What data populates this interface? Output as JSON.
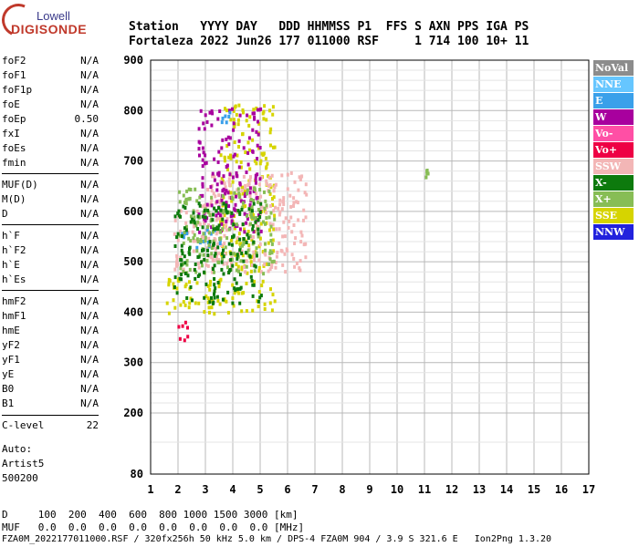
{
  "logo": {
    "top": "Lowell",
    "main": "DIGISONDE"
  },
  "header": {
    "line1": "Station   YYYY DAY   DDD HHMMSS P1  FFS S AXN PPS IGA PS",
    "line2": "Fortaleza 2022 Jun26 177 011000 RSF     1 714 100 10+ 11"
  },
  "params_group1": [
    {
      "name": "foF2",
      "value": "N/A"
    },
    {
      "name": "foF1",
      "value": "N/A"
    },
    {
      "name": "foF1p",
      "value": "N/A"
    },
    {
      "name": "foE",
      "value": "N/A"
    },
    {
      "name": "foEp",
      "value": "0.50"
    },
    {
      "name": "fxI",
      "value": "N/A"
    },
    {
      "name": "foEs",
      "value": "N/A"
    },
    {
      "name": "fmin",
      "value": "N/A"
    }
  ],
  "params_group2": [
    {
      "name": "MUF(D)",
      "value": "N/A"
    },
    {
      "name": "M(D)",
      "value": "N/A"
    },
    {
      "name": "D",
      "value": "N/A"
    }
  ],
  "params_group3": [
    {
      "name": "h`F",
      "value": "N/A"
    },
    {
      "name": "h`F2",
      "value": "N/A"
    },
    {
      "name": "h`E",
      "value": "N/A"
    },
    {
      "name": "h`Es",
      "value": "N/A"
    }
  ],
  "params_group4": [
    {
      "name": "hmF2",
      "value": "N/A"
    },
    {
      "name": "hmF1",
      "value": "N/A"
    },
    {
      "name": "hmE",
      "value": "N/A"
    },
    {
      "name": "yF2",
      "value": "N/A"
    },
    {
      "name": "yF1",
      "value": "N/A"
    },
    {
      "name": "yE",
      "value": "N/A"
    },
    {
      "name": "B0",
      "value": "N/A"
    },
    {
      "name": "B1",
      "value": "N/A"
    }
  ],
  "clevel": {
    "name": "C-level",
    "value": "22"
  },
  "auto": {
    "line1": "Auto:",
    "line2": "Artist5",
    "line3": "500200"
  },
  "bottom": {
    "d_row": "D     100  200  400  600  800 1000 1500 3000 [km]",
    "muf_row": "MUF   0.0  0.0  0.0  0.0  0.0  0.0  0.0  0.0 [MHz]",
    "footer": "FZA0M_2022177011000.RSF / 320fx256h 50 kHz 5.0 km / DPS-4 FZA0M 904 / 3.9 S 321.6 E   Ion2Png 1.3.20"
  },
  "legend": [
    {
      "label": "NoVal",
      "color": "#8c8c8c"
    },
    {
      "label": "NNE",
      "color": "#66c6ff"
    },
    {
      "label": "E",
      "color": "#3aa0ea"
    },
    {
      "label": "W",
      "color": "#a8009e"
    },
    {
      "label": "Vo-",
      "color": "#ff4fa5"
    },
    {
      "label": "Vo+",
      "color": "#ee0044"
    },
    {
      "label": "SSW",
      "color": "#f3b6b6"
    },
    {
      "label": "X-",
      "color": "#0d7a0d"
    },
    {
      "label": "X+",
      "color": "#87bd55"
    },
    {
      "label": "SSE",
      "color": "#d6d400"
    },
    {
      "label": "NNW",
      "color": "#2222dd"
    }
  ],
  "chart_data": {
    "type": "scatter",
    "x_ticks": [
      "1",
      "2",
      "3",
      "4",
      "5",
      "6",
      "7",
      "8",
      "9",
      "10",
      "11",
      "12",
      "13",
      "14",
      "15",
      "16",
      "17"
    ],
    "y_ticks": [
      "900",
      "800",
      "700",
      "600",
      "500",
      "400",
      "300",
      "200",
      "80"
    ],
    "xlim": [
      1,
      17
    ],
    "ylim": [
      80,
      900
    ],
    "grid": true,
    "legend_position": "right",
    "clusters": [
      {
        "name": "SSE",
        "xrange": [
          1.5,
          5.5
        ],
        "yrange": [
          400,
          470
        ]
      },
      {
        "name": "SSE",
        "xrange": [
          3.5,
          5.5
        ],
        "yrange": [
          480,
          820
        ]
      },
      {
        "name": "SSW",
        "xrange": [
          3,
          6.7
        ],
        "yrange": [
          480,
          680
        ]
      },
      {
        "name": "SSW",
        "xrange": [
          1.8,
          3.5
        ],
        "yrange": [
          480,
          620
        ]
      },
      {
        "name": "W",
        "xrange": [
          2.7,
          5
        ],
        "yrange": [
          560,
          810
        ]
      },
      {
        "name": "E",
        "xrange": [
          2,
          3.5
        ],
        "yrange": [
          530,
          570
        ]
      },
      {
        "name": "E",
        "xrange": [
          3.5,
          3.9
        ],
        "yrange": [
          780,
          800
        ]
      },
      {
        "name": "X+",
        "xrange": [
          2,
          5.5
        ],
        "yrange": [
          480,
          650
        ]
      },
      {
        "name": "Vo+",
        "xrange": [
          1.9,
          2.5
        ],
        "yrange": [
          345,
          385
        ]
      },
      {
        "name": "X-",
        "xrange": [
          1.8,
          5
        ],
        "yrange": [
          420,
          620
        ]
      },
      {
        "name": "X+",
        "xrange": [
          11,
          11.1
        ],
        "yrange": [
          665,
          690
        ]
      }
    ]
  }
}
